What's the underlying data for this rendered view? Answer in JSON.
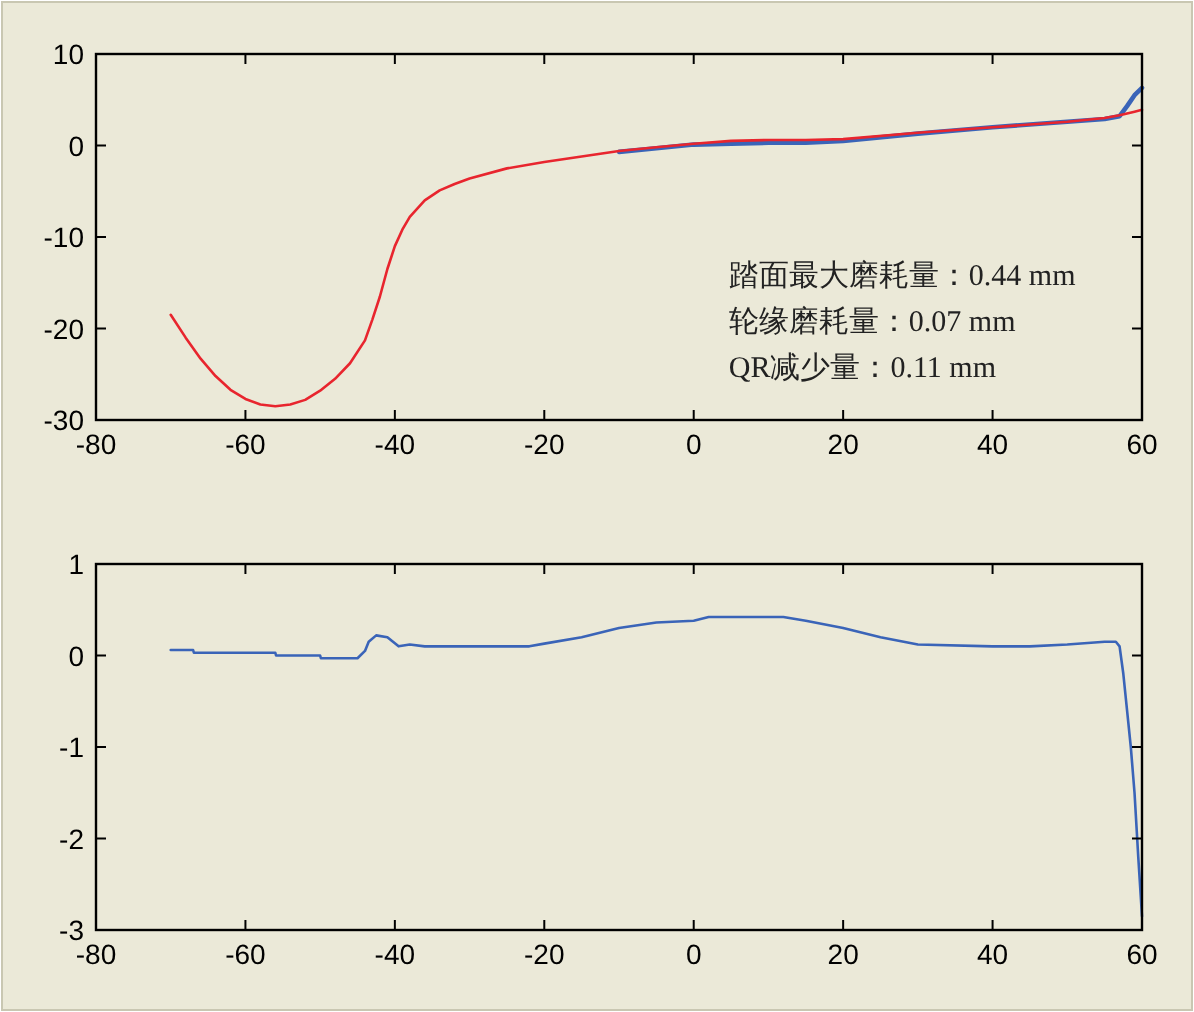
{
  "chart_data": [
    {
      "type": "line",
      "xlim": [
        -80,
        60
      ],
      "xticks": [
        -80,
        -60,
        -40,
        -20,
        0,
        20,
        40,
        60
      ],
      "ylim": [
        -30,
        10
      ],
      "yticks": [
        -30,
        -20,
        -10,
        0,
        10
      ],
      "x": [
        -70,
        -68,
        -66,
        -64,
        -62,
        -60,
        -58,
        -56,
        -54,
        -52,
        -50,
        -48,
        -46,
        -44,
        -43,
        -42,
        -41,
        -40,
        -39,
        -38,
        -36,
        -34,
        -32,
        -30,
        -25,
        -20,
        -15,
        -10,
        -5,
        0,
        5,
        10,
        15,
        20,
        30,
        40,
        50,
        55,
        57,
        58,
        59,
        60
      ],
      "series": [
        {
          "color": "#3a64b8",
          "values": [
            null,
            null,
            null,
            null,
            null,
            null,
            null,
            null,
            null,
            null,
            null,
            null,
            null,
            null,
            null,
            null,
            null,
            null,
            null,
            null,
            null,
            null,
            null,
            null,
            null,
            null,
            null,
            -0.7,
            -0.3,
            0.1,
            0.2,
            0.3,
            0.3,
            0.5,
            1.3,
            2.0,
            2.6,
            2.9,
            3.2,
            4.3,
            5.5,
            6.3
          ]
        },
        {
          "color": "#e8252e",
          "values": [
            -18.5,
            -21,
            -23.3,
            -25.2,
            -26.7,
            -27.7,
            -28.3,
            -28.5,
            -28.3,
            -27.8,
            -26.8,
            -25.5,
            -23.8,
            -21.3,
            -19,
            -16.5,
            -13.5,
            -11,
            -9.2,
            -7.8,
            -6,
            -4.9,
            -4.2,
            -3.6,
            -2.5,
            -1.8,
            -1.2,
            -0.6,
            -0.2,
            0.2,
            0.5,
            0.6,
            0.6,
            0.7,
            1.4,
            2.0,
            2.6,
            3.0,
            3.3,
            3.5,
            3.7,
            3.9
          ]
        }
      ],
      "annotations": [
        "踏面最大磨耗量：0.44 mm",
        "轮缘磨耗量：0.07 mm",
        "QR减少量：0.11 mm"
      ]
    },
    {
      "type": "line",
      "xlim": [
        -80,
        60
      ],
      "xticks": [
        -80,
        -60,
        -40,
        -20,
        0,
        20,
        40,
        60
      ],
      "ylim": [
        -3,
        1
      ],
      "yticks": [
        -3,
        -2,
        -1,
        0,
        1
      ],
      "x": [
        -70,
        -67,
        -66.9,
        -56,
        -55.9,
        -50,
        -49.9,
        -45,
        -44,
        -43.5,
        -42.5,
        -41,
        -39.5,
        -38,
        -36,
        -30,
        -22,
        -20,
        -15,
        -10,
        -5,
        0,
        2,
        12,
        15,
        20,
        25,
        30,
        40,
        45,
        50,
        55,
        56.5,
        57,
        57.5,
        58,
        58.5,
        59,
        59.5,
        60
      ],
      "series": [
        {
          "color": "#3a64b8",
          "values": [
            0.06,
            0.06,
            0.03,
            0.03,
            0.0,
            0.0,
            -0.03,
            -0.03,
            0.05,
            0.15,
            0.22,
            0.2,
            0.1,
            0.12,
            0.1,
            0.1,
            0.1,
            0.13,
            0.2,
            0.3,
            0.36,
            0.38,
            0.42,
            0.42,
            0.38,
            0.3,
            0.2,
            0.12,
            0.1,
            0.1,
            0.12,
            0.15,
            0.15,
            0.1,
            -0.2,
            -0.6,
            -1.0,
            -1.5,
            -2.2,
            -2.85
          ]
        }
      ]
    }
  ]
}
